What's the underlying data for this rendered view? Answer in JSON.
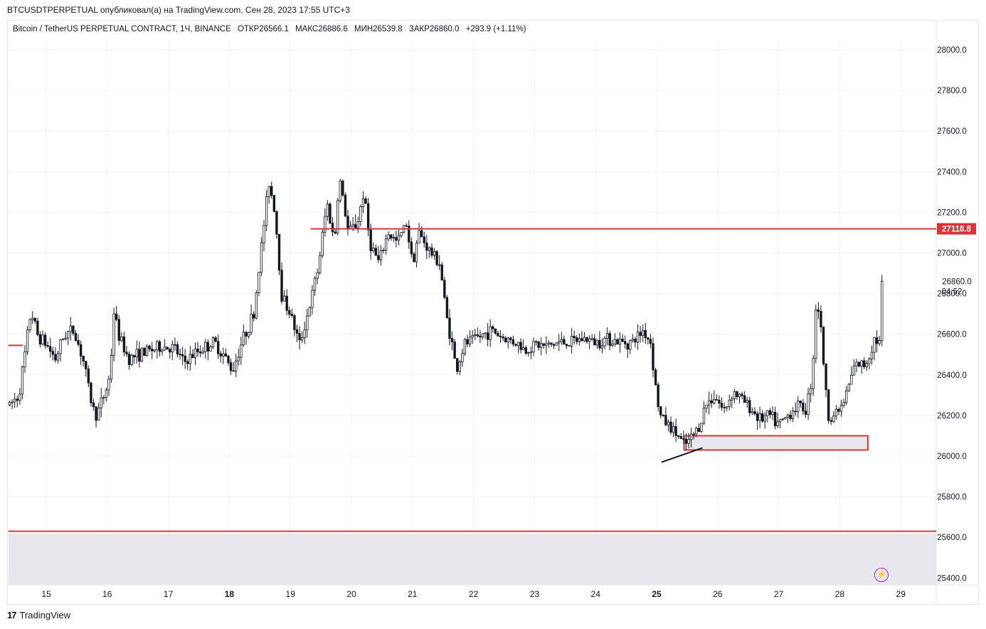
{
  "header": {
    "published_line": "BTCUSDTPERPETUAL опубликовал(а) на TradingView.com, Сен 28, 2023 17:55 UTC+3",
    "symbol_line": "Bitcoin / TetherUS PERPETUAL CONTRACT, 1Ч, BINANCE",
    "ohlc": {
      "open": "ОТКР26566.1",
      "high": "МАКС26886.6",
      "low": "МИН26539.8",
      "close": "ЗАКР26860.0",
      "change": "+293.9 (+1.11%)"
    }
  },
  "footer": {
    "logo_text": "TradingView",
    "logo_mark": "17",
    "bolt_icon": "lightning-icon"
  },
  "colors": {
    "up": "#131722",
    "down": "#131722",
    "level": "#e0303a",
    "zone_fill": "#e8e8ec",
    "grid": "#f0f3fa"
  },
  "chart_data": {
    "type": "candlestick",
    "timeframe": "1H",
    "y_ticks": [
      "28000.0",
      "27800.0",
      "27600.0",
      "27400.0",
      "27200.0",
      "27000.0",
      "26800.0",
      "26600.0",
      "26400.0",
      "26200.0",
      "26000.0",
      "25800.0",
      "25600.0",
      "25400.0"
    ],
    "x_ticks": [
      {
        "label": "15",
        "bold": false
      },
      {
        "label": "16",
        "bold": false
      },
      {
        "label": "17",
        "bold": false
      },
      {
        "label": "18",
        "bold": true
      },
      {
        "label": "19",
        "bold": false
      },
      {
        "label": "20",
        "bold": false
      },
      {
        "label": "21",
        "bold": false
      },
      {
        "label": "22",
        "bold": false
      },
      {
        "label": "23",
        "bold": false
      },
      {
        "label": "24",
        "bold": false
      },
      {
        "label": "25",
        "bold": true
      },
      {
        "label": "26",
        "bold": false
      },
      {
        "label": "27",
        "bold": false
      },
      {
        "label": "28",
        "bold": false
      },
      {
        "label": "29",
        "bold": false
      }
    ],
    "ylim": [
      25355,
      28090
    ],
    "x_range_days": [
      14.38,
      29.61
    ],
    "last_price": {
      "value": 26860.0,
      "label": "26860.0",
      "countdown": "04:52"
    },
    "levels": [
      {
        "price": 27118.8,
        "label": "27118.8",
        "from_day": 19.33
      },
      {
        "price": 25630,
        "from_day": 14.38
      },
      {
        "price": 26545,
        "from_day": 14.38,
        "to_day": 14.62
      }
    ],
    "zones": [
      {
        "price_top": 26100,
        "price_bottom": 26030,
        "from_day": 25.45,
        "to_day": 28.46,
        "outlined": true
      },
      {
        "price_top": 25620,
        "price_bottom": 25355,
        "from_day": 14.38,
        "to_day": 29.61,
        "outlined": false
      }
    ],
    "trendline": {
      "from": {
        "day": 25.08,
        "price": 25970
      },
      "to": {
        "day": 25.75,
        "price": 26040
      }
    },
    "keypoints": [
      [
        14.4,
        26250
      ],
      [
        14.55,
        26300
      ],
      [
        14.65,
        26500
      ],
      [
        14.75,
        26720
      ],
      [
        14.85,
        26600
      ],
      [
        15.0,
        26550
      ],
      [
        15.15,
        26480
      ],
      [
        15.3,
        26600
      ],
      [
        15.45,
        26620
      ],
      [
        15.6,
        26480
      ],
      [
        15.75,
        26250
      ],
      [
        15.82,
        26200
      ],
      [
        15.95,
        26300
      ],
      [
        16.05,
        26400
      ],
      [
        16.1,
        26720
      ],
      [
        16.2,
        26580
      ],
      [
        16.35,
        26480
      ],
      [
        16.5,
        26500
      ],
      [
        16.7,
        26520
      ],
      [
        16.9,
        26540
      ],
      [
        17.1,
        26530
      ],
      [
        17.25,
        26460
      ],
      [
        17.5,
        26520
      ],
      [
        17.75,
        26560
      ],
      [
        17.9,
        26500
      ],
      [
        18.05,
        26420
      ],
      [
        18.2,
        26560
      ],
      [
        18.4,
        26700
      ],
      [
        18.55,
        27100
      ],
      [
        18.65,
        27350
      ],
      [
        18.75,
        27200
      ],
      [
        18.85,
        26800
      ],
      [
        19.0,
        26700
      ],
      [
        19.15,
        26550
      ],
      [
        19.3,
        26720
      ],
      [
        19.45,
        26920
      ],
      [
        19.6,
        27250
      ],
      [
        19.72,
        27050
      ],
      [
        19.8,
        27380
      ],
      [
        19.95,
        27100
      ],
      [
        20.1,
        27150
      ],
      [
        20.2,
        27300
      ],
      [
        20.3,
        27050
      ],
      [
        20.45,
        26950
      ],
      [
        20.6,
        27100
      ],
      [
        20.75,
        27050
      ],
      [
        20.9,
        27150
      ],
      [
        21.0,
        26950
      ],
      [
        21.1,
        27100
      ],
      [
        21.3,
        27000
      ],
      [
        21.45,
        26950
      ],
      [
        21.55,
        26700
      ],
      [
        21.65,
        26550
      ],
      [
        21.72,
        26420
      ],
      [
        21.85,
        26550
      ],
      [
        22.05,
        26580
      ],
      [
        22.3,
        26620
      ],
      [
        22.5,
        26580
      ],
      [
        22.7,
        26560
      ],
      [
        22.85,
        26520
      ],
      [
        23.0,
        26550
      ],
      [
        23.2,
        26540
      ],
      [
        23.4,
        26560
      ],
      [
        23.6,
        26560
      ],
      [
        23.8,
        26580
      ],
      [
        24.0,
        26560
      ],
      [
        24.2,
        26580
      ],
      [
        24.4,
        26560
      ],
      [
        24.6,
        26560
      ],
      [
        24.78,
        26620
      ],
      [
        24.9,
        26560
      ],
      [
        24.98,
        26350
      ],
      [
        25.05,
        26200
      ],
      [
        25.2,
        26150
      ],
      [
        25.35,
        26100
      ],
      [
        25.45,
        26050
      ],
      [
        25.55,
        26080
      ],
      [
        25.7,
        26150
      ],
      [
        25.8,
        26250
      ],
      [
        25.95,
        26300
      ],
      [
        26.1,
        26220
      ],
      [
        26.25,
        26320
      ],
      [
        26.4,
        26280
      ],
      [
        26.55,
        26230
      ],
      [
        26.7,
        26180
      ],
      [
        26.85,
        26200
      ],
      [
        27.0,
        26150
      ],
      [
        27.15,
        26200
      ],
      [
        27.3,
        26250
      ],
      [
        27.45,
        26230
      ],
      [
        27.55,
        26400
      ],
      [
        27.62,
        26800
      ],
      [
        27.7,
        26600
      ],
      [
        27.8,
        26200
      ],
      [
        27.9,
        26200
      ],
      [
        28.05,
        26250
      ],
      [
        28.15,
        26350
      ],
      [
        28.25,
        26450
      ],
      [
        28.4,
        26450
      ],
      [
        28.5,
        26500
      ],
      [
        28.55,
        26580
      ],
      [
        28.65,
        26560
      ],
      [
        28.7,
        26860
      ]
    ]
  }
}
